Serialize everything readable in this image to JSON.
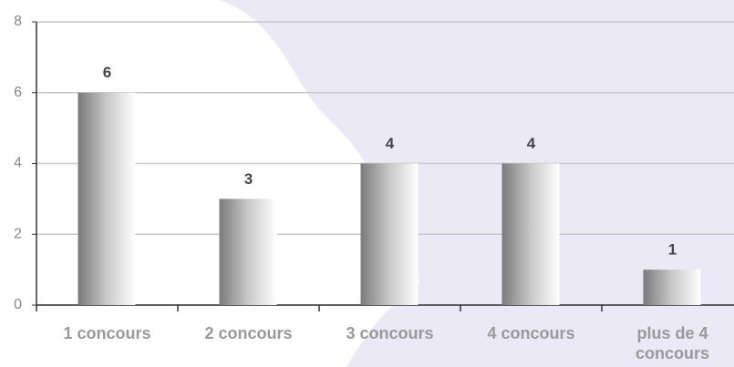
{
  "chart_data": {
    "type": "bar",
    "categories": [
      "1 concours",
      "2 concours",
      "3 concours",
      "4 concours",
      "plus de 4 concours"
    ],
    "values": [
      6,
      3,
      4,
      4,
      1
    ],
    "ylim": [
      0,
      8
    ],
    "yticks": [
      0,
      2,
      4,
      6,
      8
    ],
    "grid": true
  }
}
